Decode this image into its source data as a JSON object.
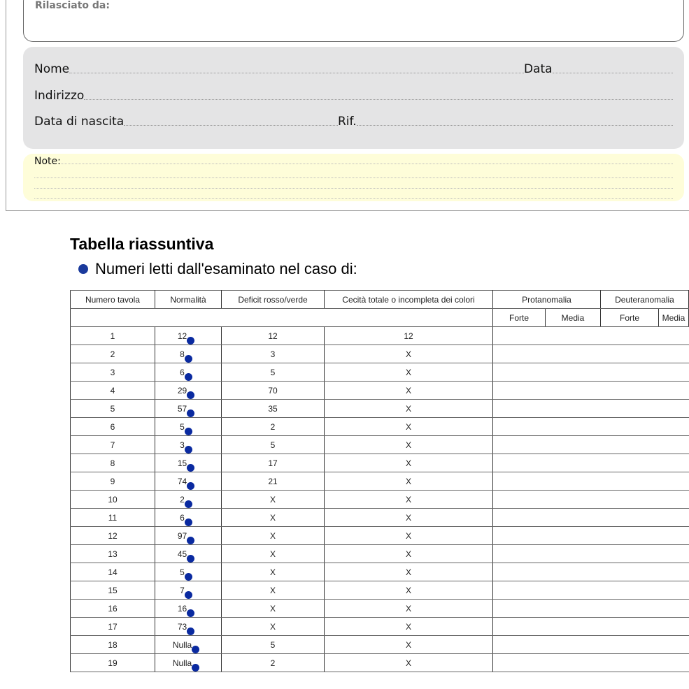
{
  "form": {
    "issued_by_label": "Rilasciato da:",
    "name_label": "Nome",
    "date_label": "Data",
    "address_label": "Indirizzo",
    "birth_label": "Data di nascita",
    "ref_label": "Rif.",
    "notes_label": "Note:"
  },
  "summary": {
    "title": "Tabella riassuntiva",
    "subtitle": "Numeri letti dall'esaminato nel caso di:",
    "bullet_color": "#1a3a9c"
  },
  "table": {
    "headers": [
      "Numero tavola",
      "Normalità",
      "Deficit rosso/verde",
      "Cecità totale o incompleta dei colori",
      "Protanomalia",
      "Deuteranomalia"
    ],
    "subheaders": [
      "Forte",
      "Media",
      "Forte",
      "Media"
    ],
    "rows": [
      [
        "1",
        "12",
        "12",
        "12"
      ],
      [
        "2",
        "8",
        "3",
        "X"
      ],
      [
        "3",
        "6",
        "5",
        "X"
      ],
      [
        "4",
        "29",
        "70",
        "X"
      ],
      [
        "5",
        "57",
        "35",
        "X"
      ],
      [
        "6",
        "5",
        "2",
        "X"
      ],
      [
        "7",
        "3",
        "5",
        "X"
      ],
      [
        "8",
        "15",
        "17",
        "X"
      ],
      [
        "9",
        "74",
        "21",
        "X"
      ],
      [
        "10",
        "2",
        "X",
        "X"
      ],
      [
        "11",
        "6",
        "X",
        "X"
      ],
      [
        "12",
        "97",
        "X",
        "X"
      ],
      [
        "13",
        "45",
        "X",
        "X"
      ],
      [
        "14",
        "5",
        "X",
        "X"
      ],
      [
        "15",
        "7",
        "X",
        "X"
      ],
      [
        "16",
        "16",
        "X",
        "X"
      ],
      [
        "17",
        "73",
        "X",
        "X"
      ],
      [
        "18",
        "Nulla",
        "5",
        "X"
      ],
      [
        "19",
        "Nulla",
        "2",
        "X"
      ]
    ]
  }
}
